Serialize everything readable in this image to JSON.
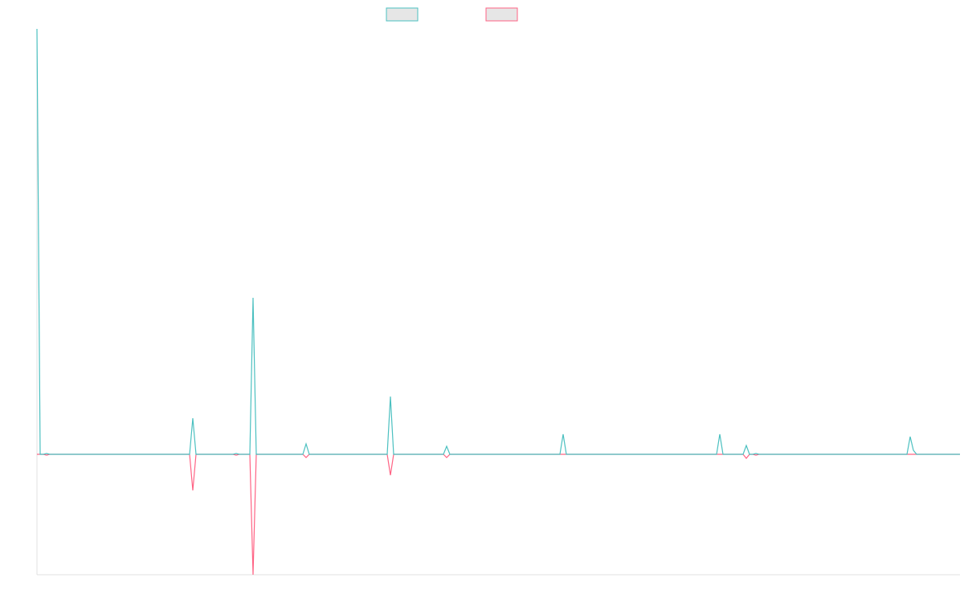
{
  "chart_data": {
    "type": "line",
    "x": [
      0,
      4,
      8,
      12,
      16,
      190,
      194,
      198,
      244,
      248,
      252,
      265,
      269,
      273,
      331,
      335,
      339,
      436,
      440,
      444,
      506,
      510,
      514,
      651,
      655,
      659,
      846,
      850,
      854,
      879,
      883,
      887,
      891,
      895,
      899,
      1083,
      1087,
      1091,
      1095,
      1149
    ],
    "series": [
      {
        "color": "#4bc0c0",
        "values": [
          53,
          0,
          0,
          0.1,
          0,
          0,
          4.5,
          0,
          0,
          0.1,
          0,
          0,
          19.5,
          0,
          0,
          1.3,
          0,
          0,
          7.2,
          0,
          0,
          1.0,
          0,
          0,
          2.5,
          0,
          0,
          2.5,
          0,
          0,
          1.1,
          0,
          0,
          0.1,
          0,
          0,
          2.2,
          0.5,
          0,
          0
        ]
      },
      {
        "color": "#ff6384",
        "values": [
          0,
          0,
          0,
          -0.1,
          0,
          0,
          -4.5,
          0,
          0,
          -0.1,
          0,
          0,
          -15,
          0,
          0,
          -0.4,
          0,
          0,
          -2.6,
          0,
          0,
          -0.4,
          0,
          0,
          0,
          0,
          0,
          0,
          0,
          0,
          -0.5,
          0,
          0,
          -0.1,
          0,
          0,
          0,
          0,
          0,
          0
        ]
      }
    ],
    "xlim": [
      0,
      1149
    ],
    "ylim": [
      -15,
      53
    ]
  }
}
